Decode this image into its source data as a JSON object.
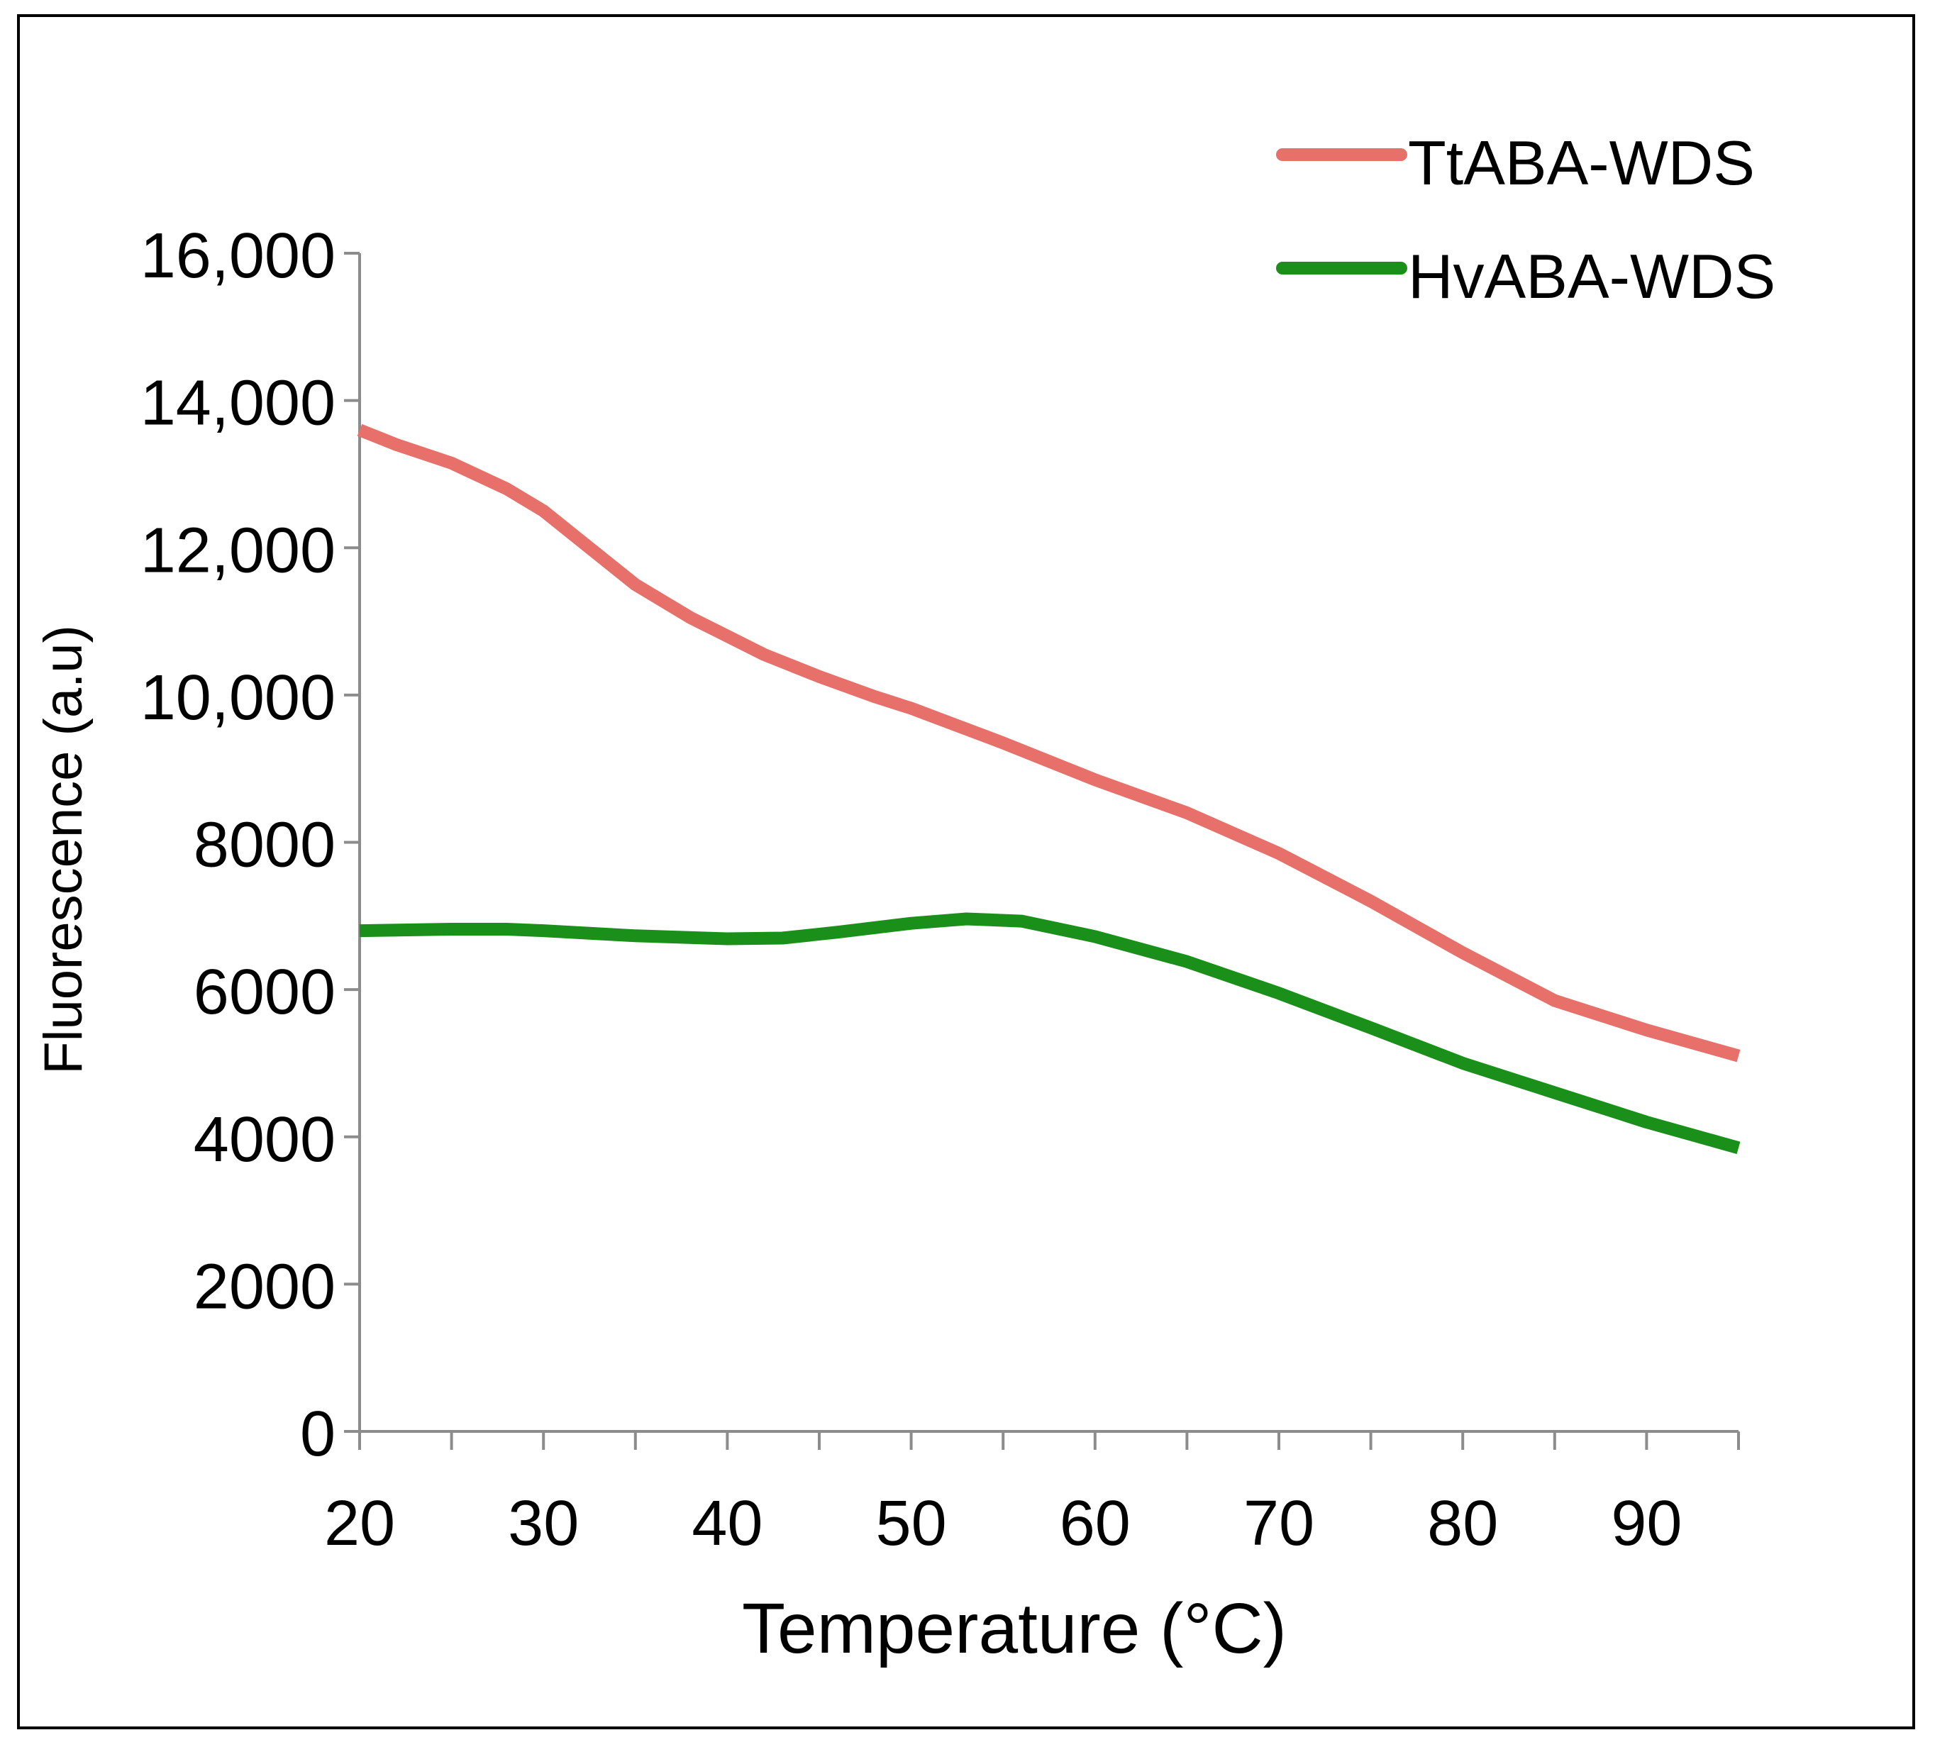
{
  "chart_data": {
    "type": "line",
    "title": "",
    "xlabel": "Temperature (°C)",
    "ylabel": "Fluorescence (a.u)",
    "xlim": [
      20,
      95
    ],
    "ylim": [
      0,
      16000
    ],
    "x_major_ticks": [
      20,
      30,
      40,
      50,
      60,
      70,
      80,
      90
    ],
    "x_minor_ticks": [
      25,
      35,
      45,
      55,
      65,
      75,
      85,
      95
    ],
    "x_tick_labels": [
      "20",
      "30",
      "40",
      "50",
      "60",
      "70",
      "80",
      "90"
    ],
    "y_ticks": [
      0,
      2000,
      4000,
      6000,
      8000,
      10000,
      12000,
      14000,
      16000
    ],
    "y_tick_labels": [
      "0",
      "2000",
      "4000",
      "6000",
      "8000",
      "10,000",
      "12,000",
      "14,000",
      "16,000"
    ],
    "grid": false,
    "legend_position": "top-right",
    "series": [
      {
        "name": "TtABA-WDS",
        "color": "#e8706a",
        "x": [
          20,
          22,
          25,
          28,
          30,
          32,
          35,
          38,
          40,
          42,
          45,
          48,
          50,
          55,
          60,
          65,
          70,
          75,
          80,
          85,
          90,
          95
        ],
        "values": [
          13600,
          13400,
          13150,
          12800,
          12500,
          12100,
          11500,
          11050,
          10800,
          10550,
          10250,
          9980,
          9820,
          9350,
          8850,
          8400,
          7850,
          7200,
          6500,
          5850,
          5450,
          5100
        ]
      },
      {
        "name": "HvABA-WDS",
        "color": "#1a8f1a",
        "x": [
          20,
          25,
          28,
          30,
          35,
          40,
          43,
          46,
          50,
          53,
          56,
          60,
          65,
          70,
          75,
          80,
          85,
          90,
          95
        ],
        "values": [
          6800,
          6820,
          6820,
          6800,
          6730,
          6690,
          6700,
          6780,
          6900,
          6960,
          6930,
          6720,
          6380,
          5950,
          5480,
          5000,
          4600,
          4200,
          3850
        ]
      }
    ]
  }
}
